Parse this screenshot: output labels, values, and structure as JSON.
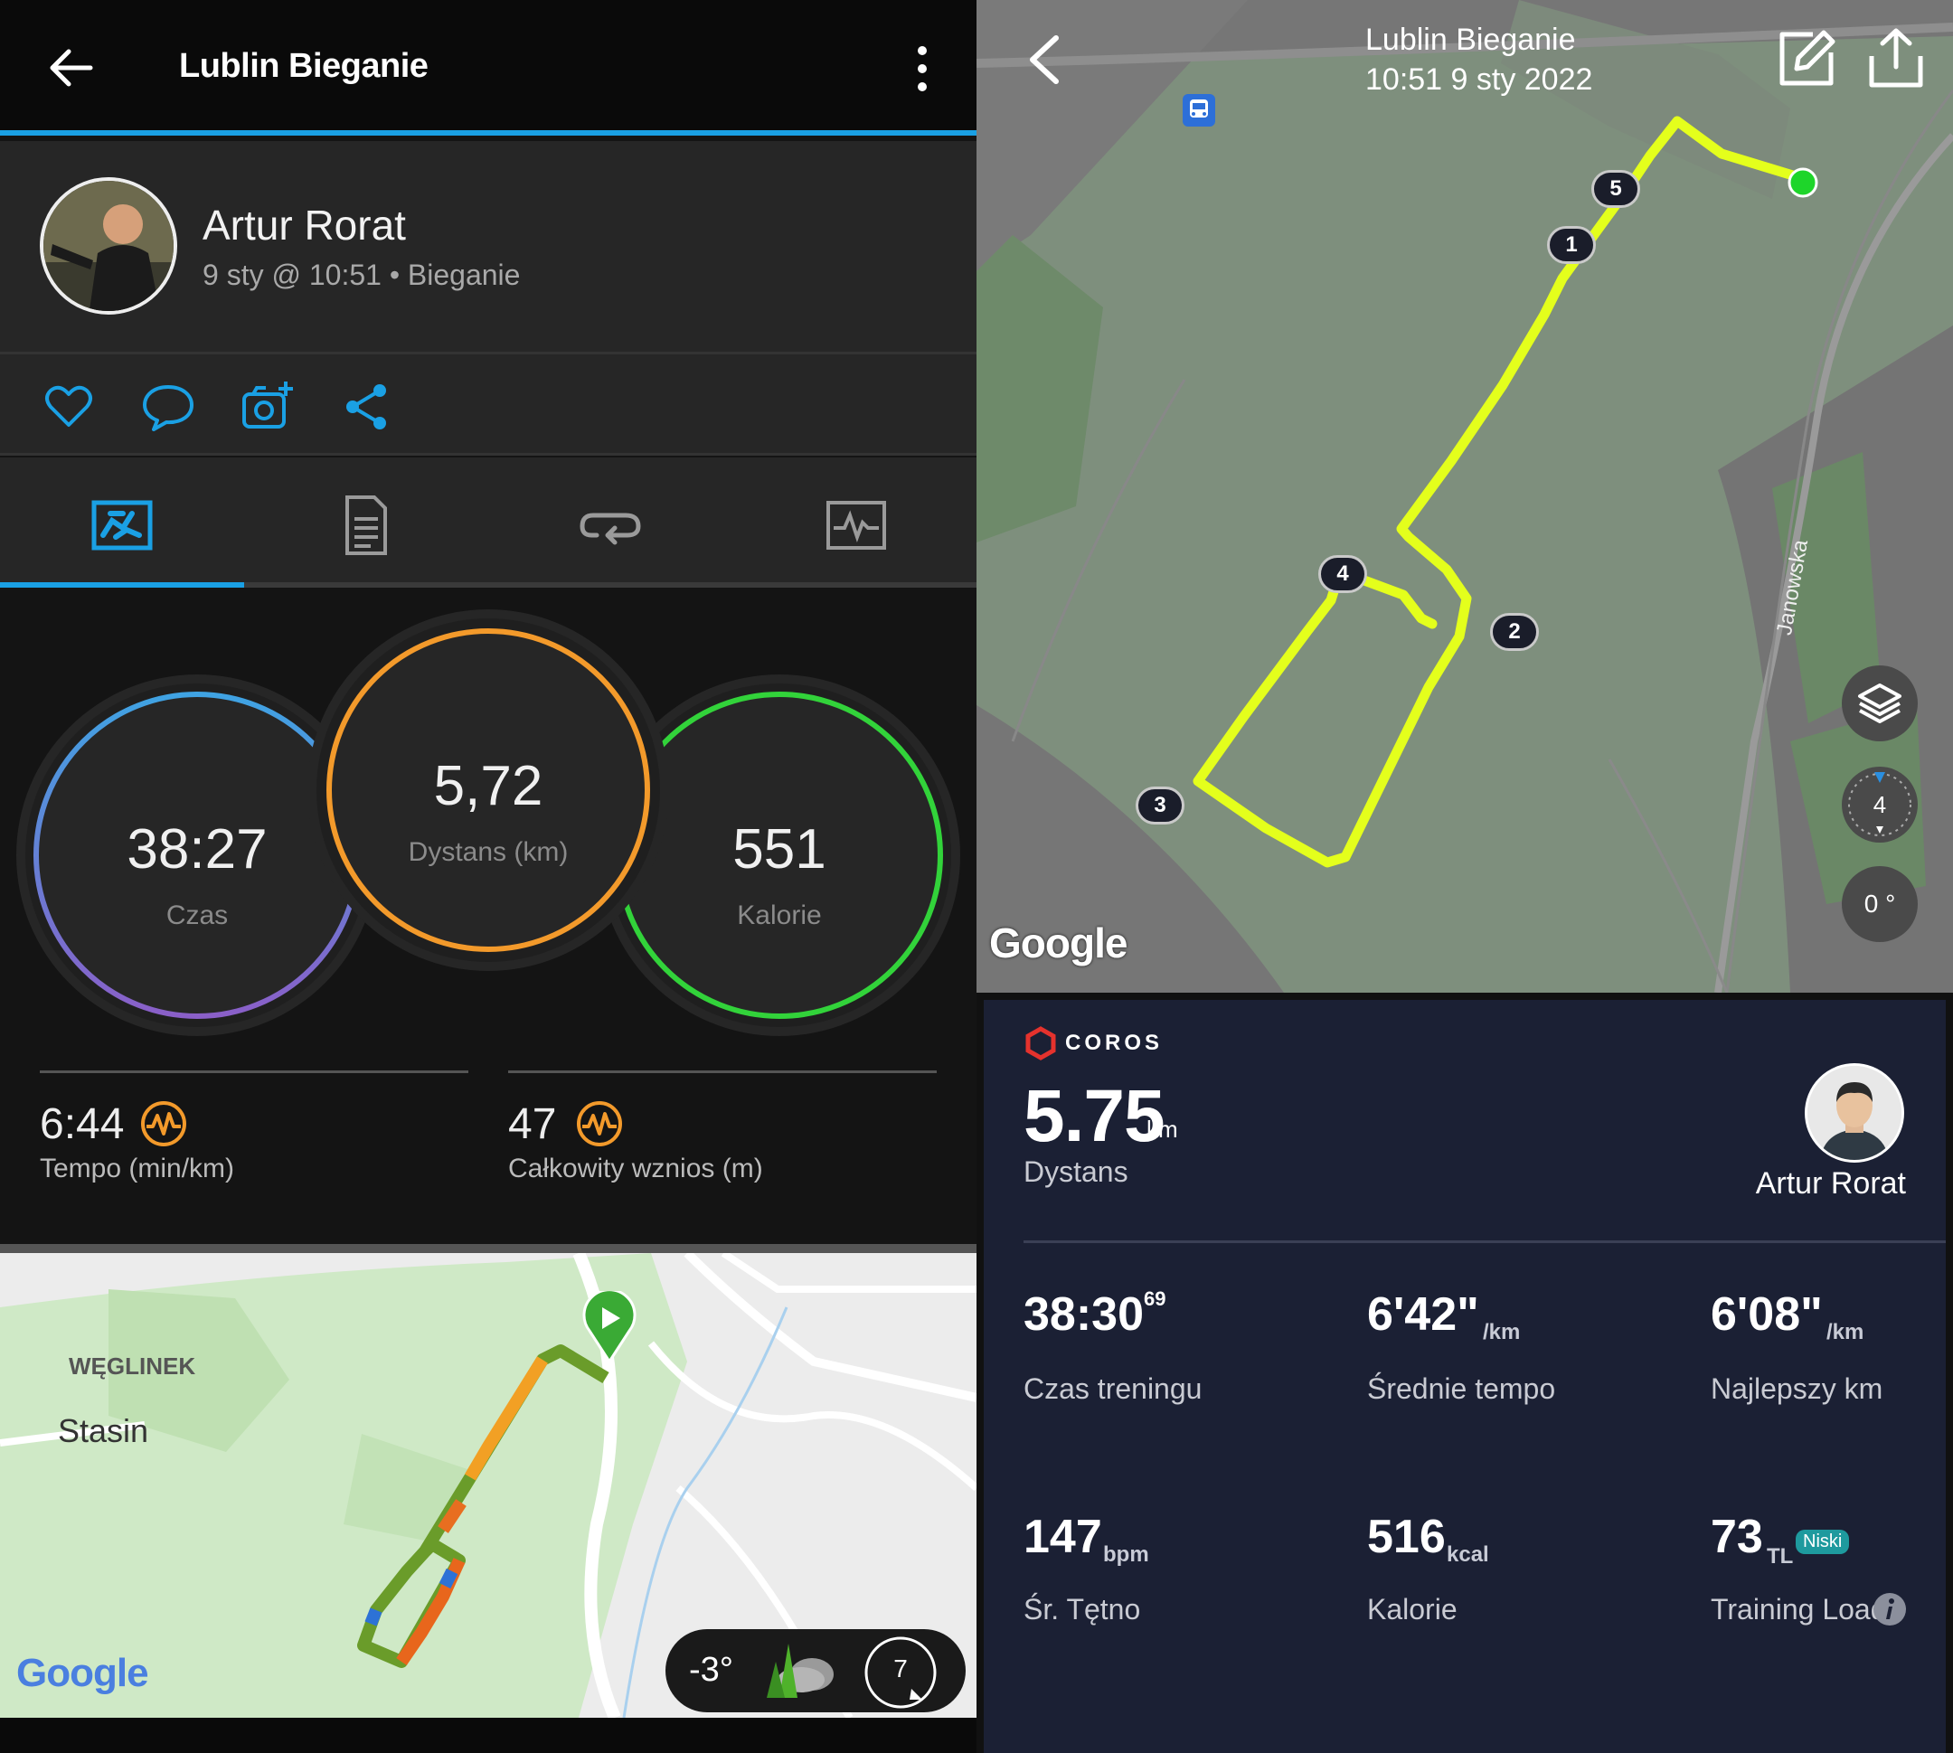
{
  "garmin": {
    "title": "Lublin Bieganie",
    "user_name": "Artur Rorat",
    "subtitle": "9 sty @ 10:51 • Bieganie",
    "stats": {
      "time_value": "38:27",
      "time_label": "Czas",
      "distance_value": "5,72",
      "distance_label": "Dystans (km)",
      "calories_value": "551",
      "calories_label": "Kalorie",
      "pace_value": "6:44",
      "pace_label": "Tempo (min/km)",
      "ascent_value": "47",
      "ascent_label": "Całkowity wznios (m)"
    },
    "map": {
      "place_1": "WĘGLINEK",
      "place_2": "Stasin",
      "google": "Google",
      "temperature": "-3°",
      "wind": "7"
    },
    "colors": {
      "accent": "#1aa0e4",
      "time_ring": "#5b7fd6",
      "distance_ring": "#f39a2b",
      "calories_ring": "#32d33a"
    }
  },
  "coros": {
    "title_line1": "Lublin Bieganie",
    "title_line2": "10:51 9 sty 2022",
    "brand": "COROS",
    "distance_value": "5.75",
    "distance_unit": "km",
    "distance_label": "Dystans",
    "user_name": "Artur Rorat",
    "map": {
      "street": "Janowska",
      "google": "Google",
      "compass": "4",
      "rotation": "0 °",
      "markers": [
        "1",
        "2",
        "3",
        "4",
        "5"
      ]
    },
    "metrics": [
      {
        "value": "38:30",
        "sup": "69",
        "unit": "",
        "label": "Czas treningu"
      },
      {
        "value": "6'42\"",
        "sup": "",
        "unit": "/km",
        "label": "Średnie tempo"
      },
      {
        "value": "6'08\"",
        "sup": "",
        "unit": "/km",
        "label": "Najlepszy km"
      },
      {
        "value": "147",
        "sup": "",
        "unit": "bpm",
        "label": "Śr. Tętno"
      },
      {
        "value": "516",
        "sup": "",
        "unit": "kcal",
        "label": "Kalorie"
      },
      {
        "value": "73",
        "sup": "",
        "unit": "TL",
        "label": "Training Load"
      }
    ],
    "load_badge": "Niski",
    "colors": {
      "route": "#e4ff1c",
      "card": "#1b2034",
      "badge": "#1e9a9e"
    }
  }
}
